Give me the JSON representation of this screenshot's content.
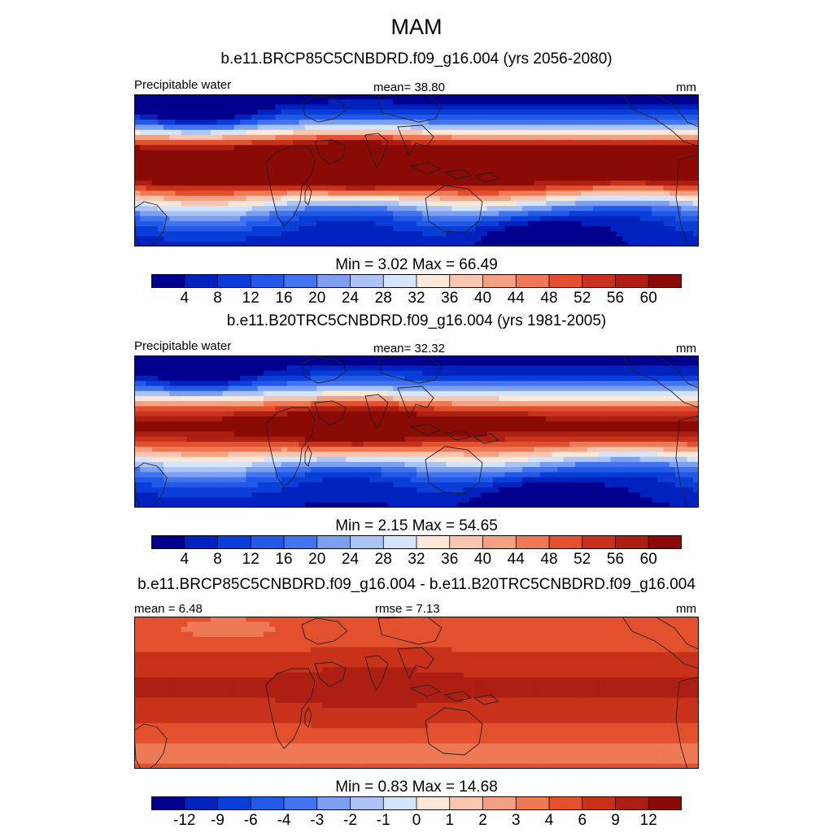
{
  "figure": {
    "title": "MAM"
  },
  "chart_data": [
    {
      "type": "heatmap",
      "title": "b.e11.BRCP85C5CNBDRD.f09_g16.004 (yrs 2056-2080)",
      "left_label": "Precipitable water",
      "center_label": "mean=  38.80",
      "right_label": "mm",
      "stats": {
        "mean": 38.8,
        "min": 3.02,
        "max": 66.49
      },
      "minmax_text": "Min =   3.02 Max =  66.49",
      "colorbar": {
        "levels": [
          "4",
          "8",
          "12",
          "16",
          "20",
          "24",
          "28",
          "32",
          "36",
          "40",
          "44",
          "48",
          "52",
          "56",
          "60"
        ],
        "colors": [
          "#00008f",
          "#0022bf",
          "#0a3ed8",
          "#2259e6",
          "#4174ee",
          "#7d9ff0",
          "#aac4f6",
          "#d4e4fb",
          "#fde7d6",
          "#f8c5b0",
          "#f4a083",
          "#ee7955",
          "#e2502e",
          "#c9321a",
          "#ad1f12",
          "#8a0a06"
        ]
      },
      "field": "precipitable-water-future"
    },
    {
      "type": "heatmap",
      "title": "b.e11.B20TRC5CNBDRD.f09_g16.004 (yrs 1981-2005)",
      "left_label": "Precipitable water",
      "center_label": "mean=  32.32",
      "right_label": "mm",
      "stats": {
        "mean": 32.32,
        "min": 2.15,
        "max": 54.65
      },
      "minmax_text": "Min =   2.15 Max =  54.65",
      "colorbar": {
        "levels": [
          "4",
          "8",
          "12",
          "16",
          "20",
          "24",
          "28",
          "32",
          "36",
          "40",
          "44",
          "48",
          "52",
          "56",
          "60"
        ],
        "colors": [
          "#00008f",
          "#0022bf",
          "#0a3ed8",
          "#2259e6",
          "#4174ee",
          "#7d9ff0",
          "#aac4f6",
          "#d4e4fb",
          "#fde7d6",
          "#f8c5b0",
          "#f4a083",
          "#ee7955",
          "#e2502e",
          "#c9321a",
          "#ad1f12",
          "#8a0a06"
        ]
      },
      "field": "precipitable-water-historical"
    },
    {
      "type": "heatmap",
      "title": "b.e11.BRCP85C5CNBDRD.f09_g16.004 - b.e11.B20TRC5CNBDRD.f09_g16.004",
      "left_label": "mean =   6.48",
      "center_label": "rmse =   7.13",
      "right_label": "mm",
      "stats": {
        "mean": 6.48,
        "rmse": 7.13,
        "min": 0.83,
        "max": 14.68
      },
      "minmax_text": "Min =   0.83 Max =  14.68",
      "colorbar": {
        "levels": [
          "-12",
          "-9",
          "-6",
          "-4",
          "-3",
          "-2",
          "-1",
          "0",
          "1",
          "2",
          "3",
          "4",
          "6",
          "9",
          "12"
        ],
        "colors": [
          "#00008f",
          "#0022bf",
          "#0a3ed8",
          "#2259e6",
          "#4174ee",
          "#7d9ff0",
          "#aac4f6",
          "#d4e4fb",
          "#fde7d6",
          "#f8c5b0",
          "#f4a083",
          "#ee7955",
          "#e2502e",
          "#c9321a",
          "#ad1f12",
          "#8a0a06"
        ]
      },
      "field": "precipitable-water-difference"
    }
  ]
}
